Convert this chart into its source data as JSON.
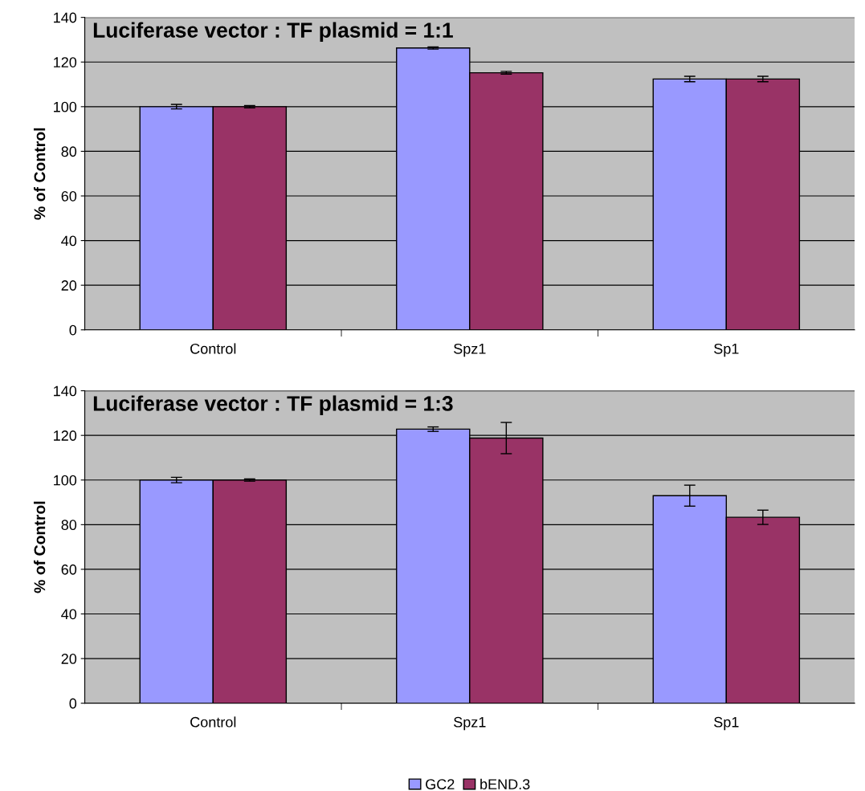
{
  "chart_data": [
    {
      "type": "bar",
      "title": "Luciferase vector : TF plasmid = 1:1",
      "ylabel": "% of Control",
      "categories": [
        "Control",
        "Spz1",
        "Sp1"
      ],
      "series": [
        {
          "color": "#9999ff",
          "values": [
            100,
            126.3,
            112.4
          ],
          "errors": [
            1,
            0.5,
            1.2
          ]
        },
        {
          "color": "#993366",
          "values": [
            100,
            115.2,
            112.4
          ],
          "errors": [
            0.5,
            0.6,
            1.2
          ]
        }
      ],
      "ylim": [
        0,
        140
      ],
      "yticks": [
        0,
        20,
        40,
        60,
        80,
        100,
        120,
        140
      ],
      "grid": "y",
      "legend": false
    },
    {
      "type": "bar",
      "title": "Luciferase vector : TF plasmid = 1:3",
      "ylabel": "% of Control",
      "categories": [
        "Control",
        "Spz1",
        "Sp1"
      ],
      "series": [
        {
          "name": "GC2",
          "color": "#9999ff",
          "values": [
            100,
            122.8,
            93
          ],
          "errors": [
            1.2,
            1,
            4.7
          ]
        },
        {
          "name": "bEND.3",
          "color": "#993366",
          "values": [
            100,
            118.8,
            83.3
          ],
          "errors": [
            0.5,
            7,
            3.2
          ]
        }
      ],
      "ylim": [
        0,
        140
      ],
      "yticks": [
        0,
        20,
        40,
        60,
        80,
        100,
        120,
        140
      ],
      "grid": "y",
      "legend": "bottom"
    }
  ]
}
